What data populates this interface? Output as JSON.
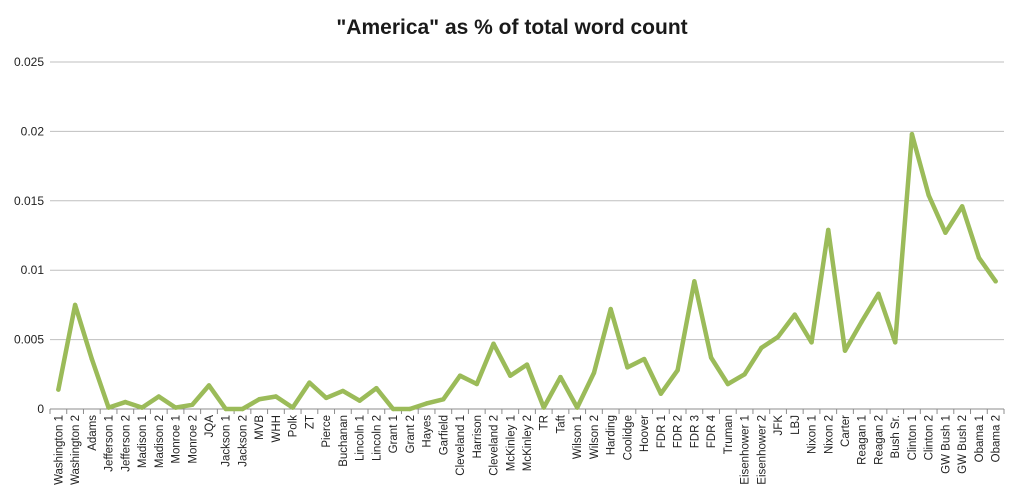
{
  "chart_data": {
    "type": "line",
    "title": "\"America\" as % of total word count",
    "xlabel": "",
    "ylabel": "",
    "ylim": [
      0,
      0.025
    ],
    "y_ticks": [
      "0",
      "0.005",
      "0.01",
      "0.015",
      "0.02",
      "0.025"
    ],
    "grid": "horizontal",
    "legend": "none",
    "line_color": "#9bbb59",
    "gridline_color": "#bfbfbf",
    "categories": [
      "Washington 1",
      "Washington 2",
      "Adams",
      "Jefferson 1",
      "Jefferson 2",
      "Madison 1",
      "Madison 2",
      "Monroe 1",
      "Monroe 2",
      "JQA",
      "Jackson 1",
      "Jackson 2",
      "MVB",
      "WHH",
      "Polk",
      "ZT",
      "Pierce",
      "Buchanan",
      "Lincoln 1",
      "Lincoln 2",
      "Grant 1",
      "Grant 2",
      "Hayes",
      "Garfield",
      "Cleveland 1",
      "Harrison",
      "Cleveland 2",
      "McKinley 1",
      "McKinley 2",
      "TR",
      "Taft",
      "Wilson 1",
      "Wilson 2",
      "Harding",
      "Coolidge",
      "Hoover",
      "FDR 1",
      "FDR 2",
      "FDR 3",
      "FDR 4",
      "Truman",
      "Eisenhower 1",
      "Eisenhower 2",
      "JFK",
      "LBJ",
      "Nixon 1",
      "Nixon 2",
      "Carter",
      "Reagan 1",
      "Reagan 2",
      "Bush Sr.",
      "Clinton 1",
      "Clinton 2",
      "GW Bush 1",
      "GW Bush 2",
      "Obama 1",
      "Obama 2"
    ],
    "series": [
      {
        "values": [
          0.0014,
          0.0075,
          0.0036,
          0.0001,
          0.0005,
          0.0001,
          0.0009,
          0.0001,
          0.0003,
          0.0017,
          0.0,
          0.0,
          0.0007,
          0.0009,
          0.0001,
          0.0019,
          0.0008,
          0.0013,
          0.0006,
          0.0015,
          0.0,
          0.0,
          0.0004,
          0.0007,
          0.0024,
          0.0018,
          0.0047,
          0.0024,
          0.0032,
          0.0001,
          0.0023,
          0.0001,
          0.0026,
          0.0072,
          0.003,
          0.0036,
          0.0011,
          0.0028,
          0.0092,
          0.0037,
          0.0018,
          0.0025,
          0.0044,
          0.0052,
          0.0068,
          0.0048,
          0.0129,
          0.0042,
          0.0063,
          0.0083,
          0.0048,
          0.0198,
          0.0154,
          0.0127,
          0.0146,
          0.0109,
          0.0092
        ]
      }
    ]
  }
}
